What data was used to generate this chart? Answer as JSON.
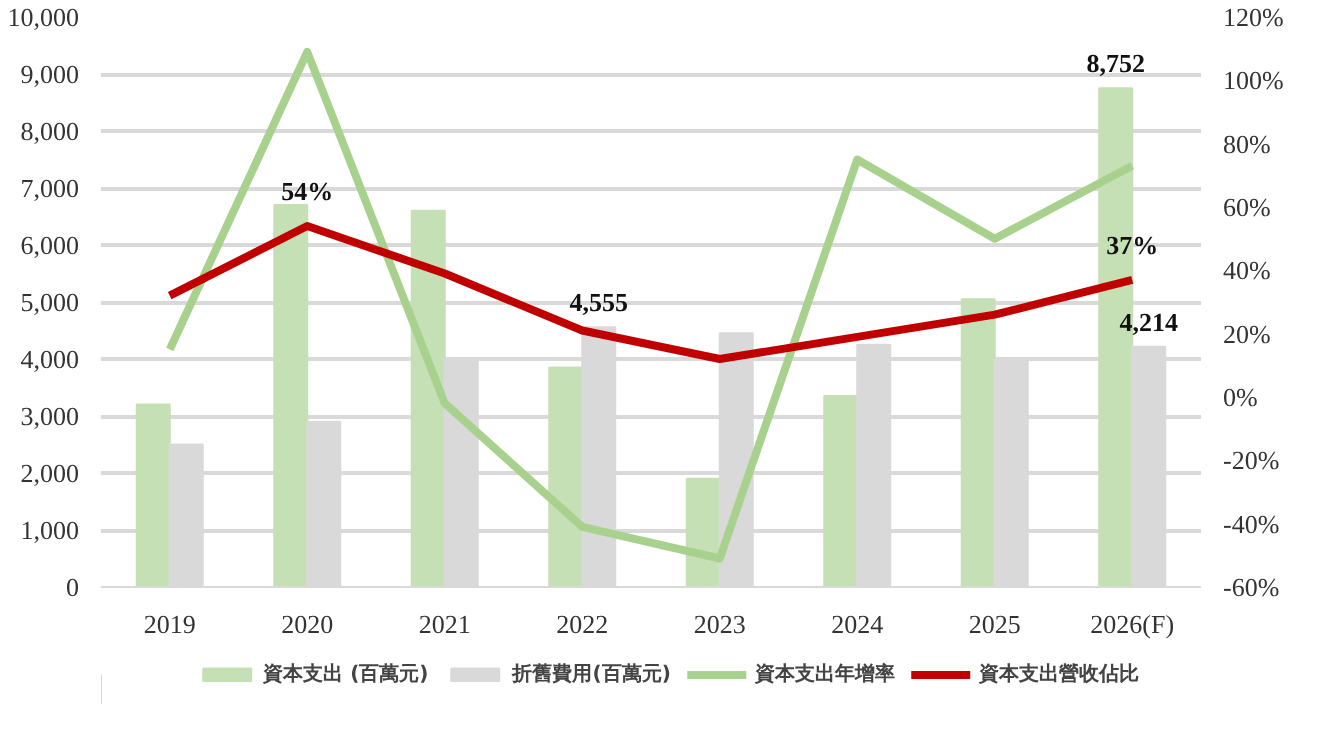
{
  "chart_data": {
    "type": "bar",
    "categories": [
      "2019",
      "2020",
      "2021",
      "2022",
      "2023",
      "2024",
      "2025",
      "2026(F)"
    ],
    "series": [
      {
        "name": "資本支出 (百萬元)",
        "color": "#c5e0b4",
        "values": [
          3200,
          6700,
          6600,
          3850,
          1900,
          3350,
          5050,
          8752
        ],
        "value_labels": [
          null,
          null,
          null,
          null,
          null,
          null,
          null,
          "8,752"
        ]
      },
      {
        "name": "折舊費用(百萬元)",
        "color": "#d9d9d9",
        "values": [
          2500,
          2900,
          4000,
          4555,
          4450,
          4250,
          4000,
          4214
        ],
        "value_labels": [
          null,
          null,
          null,
          "4,555",
          null,
          null,
          null,
          "4,214"
        ]
      },
      {
        "name": "資本支出年增率",
        "type": "line",
        "axis": "y2",
        "color": "#a9d18e",
        "values": [
          15,
          109,
          -2,
          -41,
          -51,
          75,
          50,
          73
        ]
      },
      {
        "name": "資本支出營收佔比",
        "type": "line",
        "axis": "y2",
        "color": "#c00000",
        "values": [
          32,
          54,
          39,
          21,
          12,
          19,
          26,
          37
        ],
        "value_labels": [
          null,
          "54%",
          null,
          null,
          null,
          null,
          null,
          "37%"
        ]
      }
    ],
    "ylim": [
      0,
      10000
    ],
    "yticks": [
      {
        "value": 0,
        "label": "0"
      },
      {
        "value": 1000,
        "label": "1,000"
      },
      {
        "value": 2000,
        "label": "2,000"
      },
      {
        "value": 3000,
        "label": "3,000"
      },
      {
        "value": 4000,
        "label": "4,000"
      },
      {
        "value": 5000,
        "label": "5,000"
      },
      {
        "value": 6000,
        "label": "6,000"
      },
      {
        "value": 7000,
        "label": "7,000"
      },
      {
        "value": 8000,
        "label": "8,000"
      },
      {
        "value": 9000,
        "label": "9,000"
      },
      {
        "value": 10000,
        "label": "10,000"
      }
    ],
    "y2lim": [
      -60,
      120
    ],
    "y2ticks": [
      {
        "value": -60,
        "label": "-60%"
      },
      {
        "value": -40,
        "label": "-40%"
      },
      {
        "value": -20,
        "label": "-20%"
      },
      {
        "value": 0,
        "label": "0%"
      },
      {
        "value": 20,
        "label": "20%"
      },
      {
        "value": 40,
        "label": "40%"
      },
      {
        "value": 60,
        "label": "60%"
      },
      {
        "value": 80,
        "label": "80%"
      },
      {
        "value": 100,
        "label": "100%"
      },
      {
        "value": 120,
        "label": "120%"
      }
    ],
    "grid": "y",
    "legend": "bottom"
  }
}
